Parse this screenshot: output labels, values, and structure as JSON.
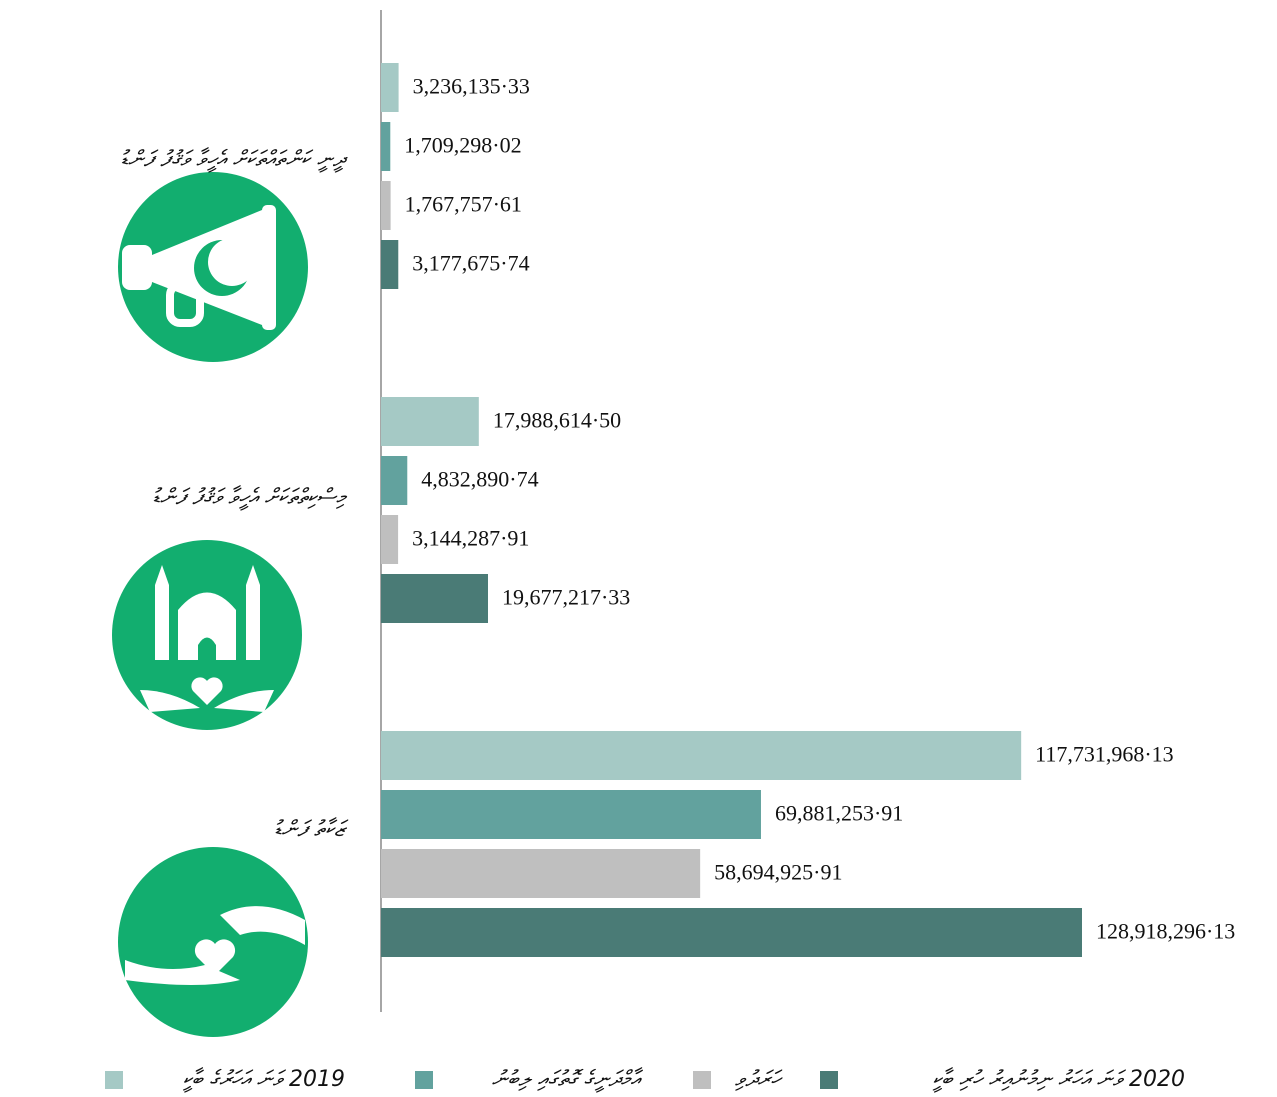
{
  "chart_data": {
    "type": "bar",
    "orientation": "horizontal",
    "categories": [
      "ދީނީ ކަންތައްތަކަށް އެހީވާ ވަޤުފު ފަންޑު",
      "މިސްކިތްތަކަށް އެހީވާ ވަޤުފު ފަންޑު",
      "ޒަކާތު ފަންޑު"
    ],
    "series": [
      {
        "name": "2019 ވަނަ އަހަރުގެ ބާކީ",
        "color": "#a5c9c5",
        "values": [
          3236135.33,
          17988614.5,
          117731968.13
        ],
        "value_labels": [
          "3,236,135·33",
          "17,988,614·50",
          "117,731,968·13"
        ]
      },
      {
        "name": "އާމްދަނީގެ ގޮތުގައި ލިބުނު",
        "color": "#62a29e",
        "values": [
          1709298.02,
          4832890.74,
          69881253.91
        ],
        "value_labels": [
          "1,709,298·02",
          "4,832,890·74",
          "69,881,253·91"
        ]
      },
      {
        "name": "ހަރަދުވި",
        "color": "#bfbfbf",
        "values": [
          1767757.61,
          3144287.91,
          58694925.91
        ],
        "value_labels": [
          "1,767,757·61",
          "3,144,287·91",
          "58,694,925·91"
        ]
      },
      {
        "name": "2020 ވަނަ އަހަރު ނިމުނުއިރު ހުރި ބާކީ",
        "color": "#4a7b76",
        "values": [
          3177675.74,
          19677217.33,
          128918296.13
        ],
        "value_labels": [
          "3,177,675·74",
          "19,677,217·33",
          "128,918,296·13"
        ]
      }
    ],
    "xlim": [
      0,
      160000000
    ]
  }
}
